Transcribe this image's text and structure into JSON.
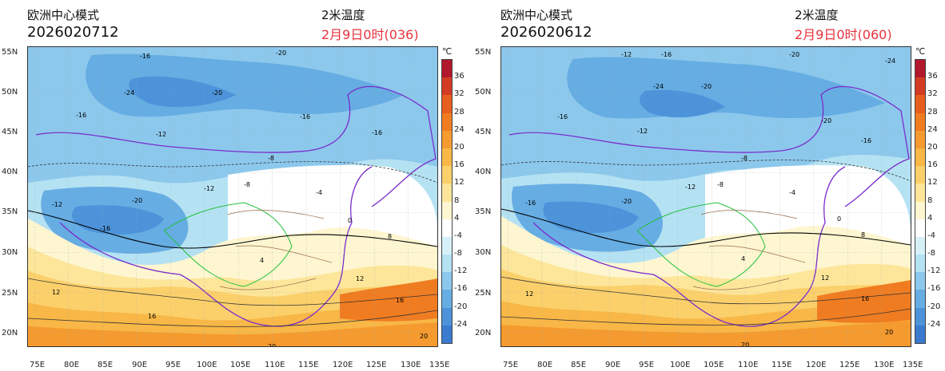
{
  "panels": [
    {
      "title": "欧洲中心模式",
      "init_time": "2026020712",
      "variable": "2米温度",
      "valid_label": "2月9日0时(036)"
    },
    {
      "title": "欧洲中心模式",
      "init_time": "2026020612",
      "variable": "2米温度",
      "valid_label": "2月9日0时(060)"
    }
  ],
  "map": {
    "lat_labels": [
      "55N",
      "50N",
      "45N",
      "40N",
      "35N",
      "30N",
      "25N",
      "20N"
    ],
    "lon_labels": [
      "75E",
      "80E",
      "85E",
      "90E",
      "95E",
      "100E",
      "105E",
      "110E",
      "115E",
      "120E",
      "125E",
      "130E",
      "135E"
    ]
  },
  "colorbar": {
    "unit": "℃",
    "ticks": [
      "36",
      "32",
      "28",
      "24",
      "20",
      "16",
      "12",
      "8",
      "4",
      "-4",
      "-8",
      "-12",
      "-16",
      "-20",
      "-24"
    ],
    "colors": [
      "#b2182b",
      "#d33b23",
      "#e85e1e",
      "#f07c21",
      "#f59a2e",
      "#f8b746",
      "#fbd06b",
      "#fde69a",
      "#fef6d0",
      "#ffffff",
      "#d6f0f8",
      "#b5e2f3",
      "#8cc8ec",
      "#66ade3",
      "#4c93da",
      "#3a7bd0"
    ]
  },
  "contour_labels": [
    "-24",
    "-20",
    "-16",
    "-12",
    "-8",
    "-4",
    "0",
    "4",
    "8",
    "12",
    "16",
    "20"
  ]
}
